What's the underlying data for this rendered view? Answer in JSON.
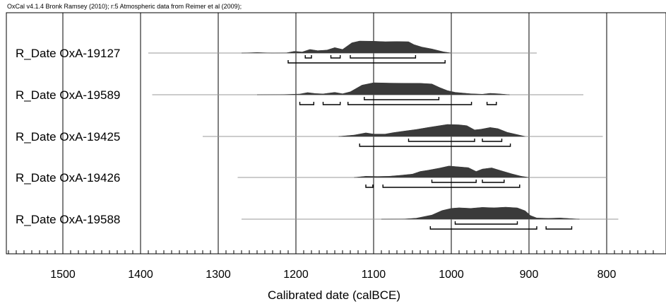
{
  "header": "OxCal v4.1.4 Bronk Ramsey (2010); r:5 Atmospheric data from Reimer et al (2009);",
  "chart_data": {
    "type": "area",
    "xlabel": "Calibrated date (calBCE)",
    "xlim": [
      1575,
      740
    ],
    "x_ticks": [
      1500,
      1400,
      1300,
      1200,
      1100,
      1000,
      900,
      800
    ],
    "minor_tick_step": 10,
    "grid": true,
    "series": [
      {
        "name": "R_Date OxA-19127",
        "prior_range": [
          1390,
          890
        ],
        "posterior": [
          [
            1270,
            0
          ],
          [
            1250,
            0.04
          ],
          [
            1230,
            0
          ],
          [
            1212,
            0.02
          ],
          [
            1202,
            0.14
          ],
          [
            1192,
            0.09
          ],
          [
            1182,
            0.3
          ],
          [
            1172,
            0.2
          ],
          [
            1160,
            0.25
          ],
          [
            1150,
            0.45
          ],
          [
            1140,
            0.3
          ],
          [
            1128,
            0.85
          ],
          [
            1118,
            1
          ],
          [
            1100,
            0.98
          ],
          [
            1085,
            0.94
          ],
          [
            1070,
            0.96
          ],
          [
            1055,
            0.94
          ],
          [
            1048,
            0.7
          ],
          [
            1038,
            0.5
          ],
          [
            1025,
            0.34
          ],
          [
            1010,
            0.1
          ],
          [
            1000,
            0
          ]
        ],
        "range_68": [
          [
            1188,
            1180
          ],
          [
            1155,
            1143
          ],
          [
            1130,
            1046
          ]
        ],
        "range_95": [
          [
            1210,
            1008
          ]
        ]
      },
      {
        "name": "R_Date OxA-19589",
        "prior_range": [
          1385,
          830
        ],
        "posterior": [
          [
            1250,
            0
          ],
          [
            1215,
            0.02
          ],
          [
            1195,
            0.06
          ],
          [
            1185,
            0.18
          ],
          [
            1175,
            0.1
          ],
          [
            1165,
            0.07
          ],
          [
            1150,
            0.2
          ],
          [
            1140,
            0.08
          ],
          [
            1130,
            0.25
          ],
          [
            1115,
            0.8
          ],
          [
            1100,
            1
          ],
          [
            1080,
            0.97
          ],
          [
            1060,
            0.96
          ],
          [
            1040,
            0.95
          ],
          [
            1025,
            0.9
          ],
          [
            1015,
            0.6
          ],
          [
            1005,
            0.35
          ],
          [
            995,
            0.2
          ],
          [
            975,
            0.08
          ],
          [
            960,
            0.04
          ],
          [
            950,
            0.12
          ],
          [
            940,
            0.08
          ],
          [
            925,
            0
          ]
        ],
        "range_68": [
          [
            1112,
            1016
          ]
        ],
        "range_95": [
          [
            1195,
            1177
          ],
          [
            1165,
            1143
          ],
          [
            1133,
            974
          ],
          [
            954,
            942
          ]
        ]
      },
      {
        "name": "R_Date OxA-19425",
        "prior_range": [
          1320,
          805
        ],
        "posterior": [
          [
            1145,
            0
          ],
          [
            1125,
            0.12
          ],
          [
            1110,
            0.3
          ],
          [
            1100,
            0.2
          ],
          [
            1085,
            0.2
          ],
          [
            1075,
            0.32
          ],
          [
            1060,
            0.45
          ],
          [
            1045,
            0.58
          ],
          [
            1030,
            0.75
          ],
          [
            1015,
            0.9
          ],
          [
            1005,
            1
          ],
          [
            990,
            0.97
          ],
          [
            980,
            0.9
          ],
          [
            970,
            0.55
          ],
          [
            962,
            0.6
          ],
          [
            950,
            0.75
          ],
          [
            940,
            0.65
          ],
          [
            928,
            0.35
          ],
          [
            915,
            0.15
          ],
          [
            905,
            0
          ]
        ],
        "range_68": [
          [
            1055,
            970
          ],
          [
            960,
            935
          ]
        ],
        "range_95": [
          [
            1118,
            924
          ]
        ]
      },
      {
        "name": "R_Date OxA-19426",
        "prior_range": [
          1275,
          800
        ],
        "posterior": [
          [
            1125,
            0
          ],
          [
            1110,
            0.1
          ],
          [
            1095,
            0.08
          ],
          [
            1080,
            0.1
          ],
          [
            1065,
            0.18
          ],
          [
            1050,
            0.28
          ],
          [
            1040,
            0.5
          ],
          [
            1030,
            0.6
          ],
          [
            1015,
            0.78
          ],
          [
            1003,
            0.95
          ],
          [
            990,
            0.88
          ],
          [
            978,
            0.82
          ],
          [
            968,
            0.5
          ],
          [
            960,
            0.7
          ],
          [
            948,
            0.8
          ],
          [
            935,
            0.55
          ],
          [
            922,
            0.3
          ],
          [
            910,
            0.1
          ],
          [
            900,
            0
          ]
        ],
        "range_68": [
          [
            1025,
            968
          ],
          [
            960,
            932
          ]
        ],
        "range_95": [
          [
            1110,
            1101
          ],
          [
            1088,
            912
          ]
        ]
      },
      {
        "name": "R_Date OxA-19588",
        "prior_range": [
          1270,
          785
        ],
        "posterior": [
          [
            1090,
            0
          ],
          [
            1060,
            0.02
          ],
          [
            1045,
            0.08
          ],
          [
            1025,
            0.35
          ],
          [
            1012,
            0.72
          ],
          [
            1000,
            0.9
          ],
          [
            990,
            0.95
          ],
          [
            975,
            0.9
          ],
          [
            960,
            0.98
          ],
          [
            945,
            0.95
          ],
          [
            930,
            1
          ],
          [
            915,
            0.94
          ],
          [
            905,
            0.7
          ],
          [
            898,
            0.3
          ],
          [
            890,
            0.1
          ],
          [
            875,
            0.07
          ],
          [
            860,
            0.1
          ],
          [
            848,
            0.05
          ],
          [
            835,
            0
          ]
        ],
        "range_68": [
          [
            995,
            915
          ]
        ],
        "range_95": [
          [
            1027,
            890
          ],
          [
            878,
            845
          ]
        ]
      }
    ]
  }
}
